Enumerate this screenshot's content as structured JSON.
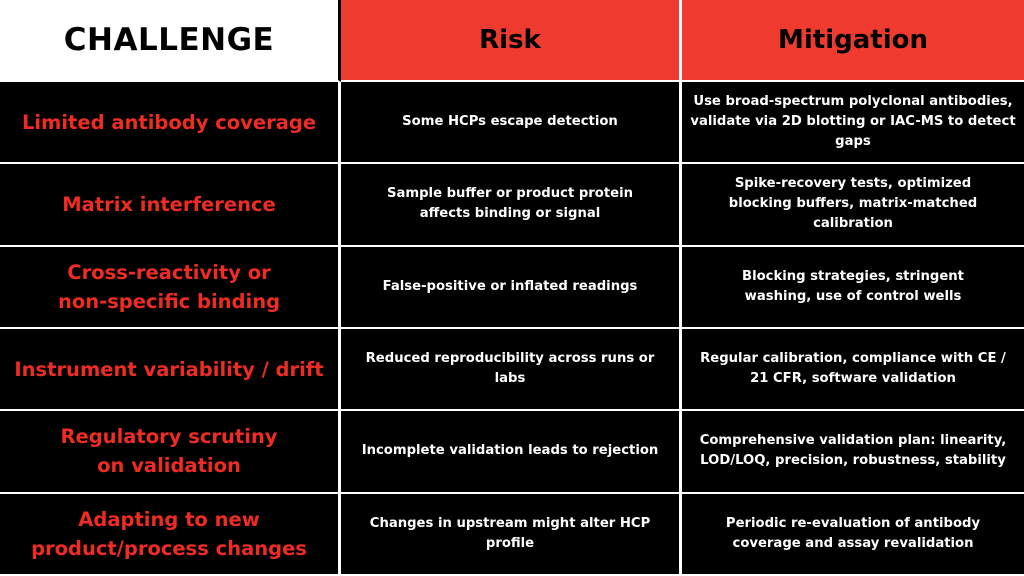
{
  "header": {
    "challenge": "CHALLENGE",
    "risk": "Risk",
    "mitigation": "Mitigation"
  },
  "rows": [
    {
      "challenge": "Limited antibody coverage",
      "risk": "Some HCPs escape detection",
      "mitigation": "Use broad-spectrum polyclonal antibodies, validate via 2D blotting or IAC-MS to detect gaps"
    },
    {
      "challenge": "Matrix interference",
      "risk": "Sample buffer or product protein affects binding or signal",
      "mitigation": "Spike-recovery tests, optimized blocking buffers, matrix-matched calibration"
    },
    {
      "challenge": "Cross-reactivity or non-specific binding",
      "risk": "False-positive or inflated readings",
      "mitigation": "Blocking strategies, stringent washing, use of control wells"
    },
    {
      "challenge": "Instrument variability / drift",
      "risk": "Reduced reproducibility across runs or labs",
      "mitigation": "Regular calibration, compliance with CE / 21 CFR, software validation"
    },
    {
      "challenge": "Regulatory scrutiny on validation",
      "risk": "Incomplete validation leads to rejection",
      "mitigation": "Comprehensive validation plan: linearity, LOD/LOQ, precision, robustness, stability"
    },
    {
      "challenge": "Adapting to new product/process changes",
      "risk": "Changes in upstream might alter HCP profile",
      "mitigation": "Periodic re-evaluation of antibody coverage and assay revalidation"
    }
  ],
  "colors": {
    "accent_red": "#ee3a2f",
    "challenge_text": "#ee2c24",
    "cell_bg": "#000000",
    "body_text": "#ffffff"
  }
}
